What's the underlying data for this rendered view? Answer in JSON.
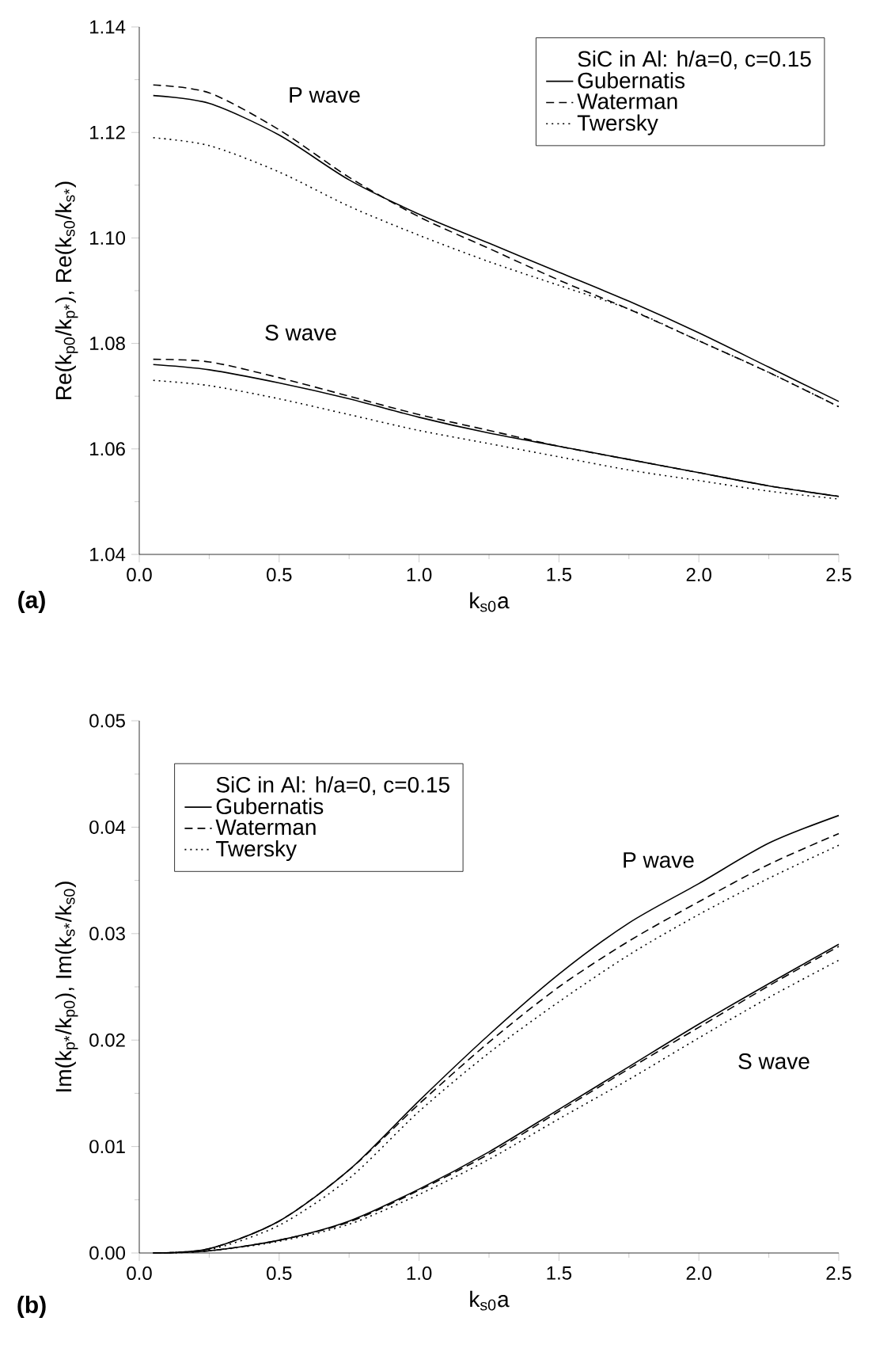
{
  "chart_data": [
    {
      "type": "line",
      "xlabel": "k$_{s0}$a",
      "ylabel": "Re(k$_{p0}$/k$_{p*}$),  Re(k$_{s0}$/k$_{s*}$)",
      "legend_title": "SiC in Al: h/a=0, c=0.15",
      "legend": "top right",
      "x": [
        0.05,
        0.25,
        0.5,
        0.75,
        1.0,
        1.25,
        1.5,
        1.75,
        2.0,
        2.25,
        2.5
      ],
      "xlim": [
        0,
        2.5
      ],
      "xticks": [
        {
          "value": 0,
          "label": "0.0"
        },
        0.5,
        {
          "value": 1,
          "label": "1.0"
        },
        1.5,
        {
          "value": 2,
          "label": "2.0"
        },
        2.5
      ],
      "ylim": [
        1.04,
        1.14
      ],
      "yticks": [
        1.04,
        1.06,
        1.08,
        {
          "value": 1.1,
          "label": "1.10"
        },
        1.12,
        1.14
      ],
      "annotations": [
        "P wave",
        "S wave",
        "(a)"
      ],
      "series": [
        {
          "name": "Gubernatis",
          "color": "#000000",
          "line_style": "solid",
          "values": [
            1.127,
            1.1255,
            1.1195,
            1.111,
            1.1045,
            1.099,
            1.0935,
            1.088,
            1.082,
            1.0755,
            1.069
          ]
        },
        {
          "name": "Waterman",
          "color": "#000000",
          "line_style": "dashed",
          "values": [
            1.129,
            1.1275,
            1.1205,
            1.1115,
            1.104,
            1.098,
            1.092,
            1.0865,
            1.0805,
            1.0745,
            1.068
          ]
        },
        {
          "name": "Twersky",
          "color": "#000000",
          "line_style": "dotted",
          "values": [
            1.119,
            1.1175,
            1.1125,
            1.106,
            1.1005,
            1.0955,
            1.091,
            1.0865,
            1.0805,
            1.0745,
            1.068
          ]
        },
        {
          "color": "#000000",
          "line_style": "solid",
          "values": [
            1.076,
            1.075,
            1.0725,
            1.0695,
            1.066,
            1.063,
            1.0605,
            1.058,
            1.0555,
            1.053,
            1.051
          ]
        },
        {
          "color": "#000000",
          "line_style": "dashed",
          "values": [
            1.077,
            1.0765,
            1.0735,
            1.07,
            1.0665,
            1.0635,
            1.0605,
            1.058,
            1.0555,
            1.053,
            1.051
          ]
        },
        {
          "color": "#000000",
          "line_style": "dotted",
          "values": [
            1.073,
            1.072,
            1.0695,
            1.0665,
            1.0635,
            1.061,
            1.0585,
            1.056,
            1.054,
            1.052,
            1.0505
          ]
        }
      ]
    },
    {
      "type": "line",
      "xlabel": "k$_{s0}$a",
      "ylabel": "Im(k$_{p*}$/k$_{p0}$),  Im(k$_{s*}$/k$_{s0}$)",
      "legend_title": "SiC in Al: h/a=0, c=0.15",
      "legend": "top left",
      "x": [
        0.05,
        0.25,
        0.5,
        0.75,
        1.0,
        1.25,
        1.5,
        1.75,
        2.0,
        2.25,
        2.5
      ],
      "xlim": [
        0,
        2.5
      ],
      "xticks": [
        {
          "value": 0,
          "label": "0.0"
        },
        0.5,
        {
          "value": 1,
          "label": "1.0"
        },
        1.5,
        {
          "value": 2,
          "label": "2.0"
        },
        2.5
      ],
      "ylim": [
        0,
        0.05
      ],
      "yticks": [
        {
          "value": 0,
          "label": "0.00"
        },
        0.01,
        0.02,
        0.03,
        0.04,
        0.05
      ],
      "annotations": [
        "P wave",
        "S wave",
        "(b)"
      ],
      "series": [
        {
          "name": "Gubernatis",
          "color": "#000000",
          "line_style": "solid",
          "values": [
            0,
            0.0004,
            0.003,
            0.0078,
            0.0143,
            0.0205,
            0.0262,
            0.031,
            0.0347,
            0.0385,
            0.0411
          ]
        },
        {
          "name": "Waterman",
          "color": "#000000",
          "line_style": "dashed",
          "values": [
            0,
            0.0004,
            0.003,
            0.0078,
            0.014,
            0.0198,
            0.025,
            0.0293,
            0.033,
            0.0365,
            0.0394
          ]
        },
        {
          "name": "Twersky",
          "color": "#000000",
          "line_style": "dotted",
          "values": [
            0,
            0.0003,
            0.0026,
            0.007,
            0.0133,
            0.0188,
            0.0236,
            0.028,
            0.0318,
            0.0352,
            0.0383
          ]
        },
        {
          "color": "#000000",
          "line_style": "solid",
          "values": [
            0,
            0.0002,
            0.0012,
            0.003,
            0.006,
            0.0095,
            0.0135,
            0.0175,
            0.0215,
            0.0253,
            0.029
          ]
        },
        {
          "color": "#000000",
          "line_style": "dashed",
          "values": [
            0,
            0.0002,
            0.0012,
            0.0029,
            0.0059,
            0.0093,
            0.0133,
            0.0173,
            0.0212,
            0.0251,
            0.0288
          ]
        },
        {
          "color": "#000000",
          "line_style": "dotted",
          "values": [
            0,
            0.0002,
            0.0011,
            0.0027,
            0.0055,
            0.0088,
            0.0126,
            0.0163,
            0.0202,
            0.024,
            0.0275
          ]
        }
      ]
    }
  ]
}
